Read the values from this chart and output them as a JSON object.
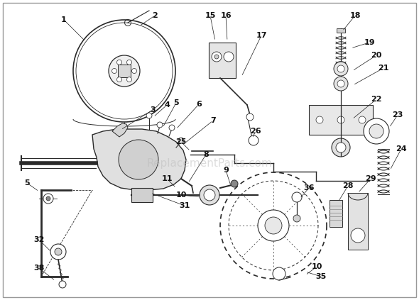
{
  "bg_color": "#ffffff",
  "line_color": "#2a2a2a",
  "watermark_text": "ReplacementParts.com",
  "watermark_color": "#bbbbbb",
  "watermark_alpha": 0.5,
  "font_size_label": 8,
  "font_size_watermark": 11
}
